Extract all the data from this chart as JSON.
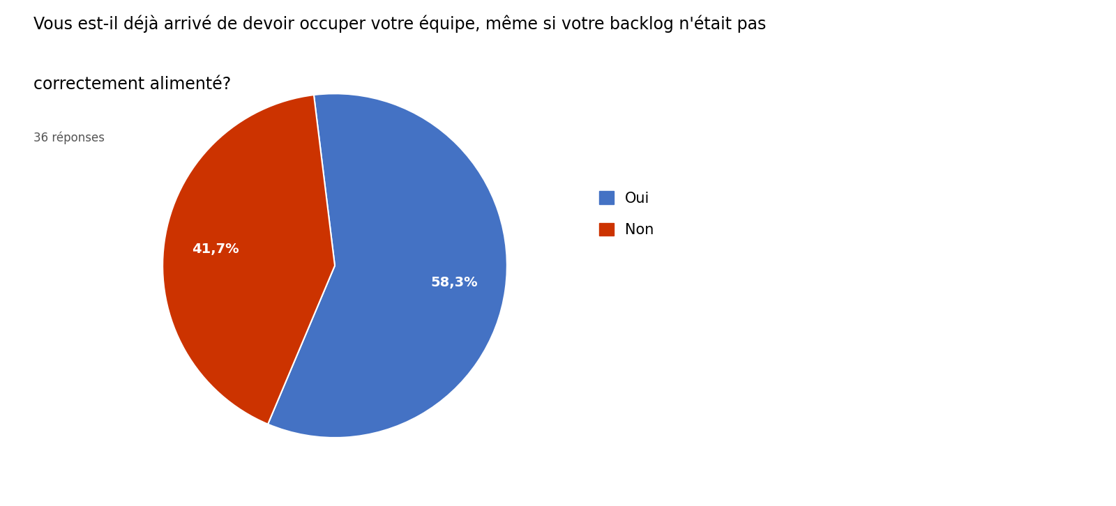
{
  "title_line1": "Vous est-il déjà arrivé de devoir occuper votre équipe, même si votre backlog n'était pas",
  "title_line2": "correctement alimenté?",
  "subtitle": "36 réponses",
  "labels": [
    "Oui",
    "Non"
  ],
  "values": [
    58.3,
    41.7
  ],
  "colors": [
    "#4472C4",
    "#CC3300"
  ],
  "autopct_labels": [
    "58,3%",
    "41,7%"
  ],
  "title_fontsize": 17,
  "subtitle_fontsize": 12,
  "legend_fontsize": 15,
  "autopct_fontsize": 14,
  "background_color": "#ffffff",
  "startangle": 97
}
